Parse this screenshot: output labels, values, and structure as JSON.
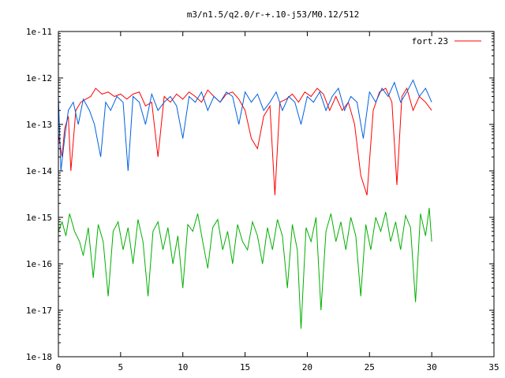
{
  "chart_data": {
    "type": "line",
    "title": "m3/n1.5/q2.0/r-+.10-j53/M0.12/512",
    "xlabel": "",
    "ylabel": "",
    "xlim": [
      0,
      35
    ],
    "ylim": [
      1e-18,
      1e-11
    ],
    "y_scale": "log",
    "grid": false,
    "legend_position": "top-right",
    "x_ticks": [
      0,
      5,
      10,
      15,
      20,
      25,
      30,
      35
    ],
    "x_tick_labels": [
      "0",
      "5",
      "10",
      "15",
      "20",
      "25",
      "30",
      "35"
    ],
    "y_ticks": [
      1e-18,
      1e-17,
      1e-16,
      1e-15,
      1e-14,
      1e-13,
      1e-12,
      1e-11
    ],
    "y_tick_labels": [
      "1e-18",
      "1e-17",
      "1e-16",
      "1e-15",
      "1e-14",
      "1e-13",
      "1e-12",
      "1e-11"
    ],
    "x_range": [
      0,
      30
    ],
    "series": [
      {
        "name": "fort.23",
        "color": "#ff0000",
        "values": [
          {
            "x": 0.0,
            "y": 6e-14
          },
          {
            "x": 0.3,
            "y": 2e-14
          },
          {
            "x": 0.5,
            "y": 8e-14
          },
          {
            "x": 0.8,
            "y": 1.5e-13
          },
          {
            "x": 1.0,
            "y": 1e-14
          },
          {
            "x": 1.4,
            "y": 2e-13
          },
          {
            "x": 1.8,
            "y": 3e-13
          },
          {
            "x": 2.2,
            "y": 3.5e-13
          },
          {
            "x": 2.6,
            "y": 4e-13
          },
          {
            "x": 3.0,
            "y": 6e-13
          },
          {
            "x": 3.5,
            "y": 4.5e-13
          },
          {
            "x": 4.0,
            "y": 5e-13
          },
          {
            "x": 4.5,
            "y": 4e-13
          },
          {
            "x": 5.0,
            "y": 4.5e-13
          },
          {
            "x": 5.5,
            "y": 3.5e-13
          },
          {
            "x": 6.0,
            "y": 4.5e-13
          },
          {
            "x": 6.5,
            "y": 5e-13
          },
          {
            "x": 7.0,
            "y": 2.5e-13
          },
          {
            "x": 7.5,
            "y": 3e-13
          },
          {
            "x": 8.0,
            "y": 2e-14
          },
          {
            "x": 8.5,
            "y": 4e-13
          },
          {
            "x": 9.0,
            "y": 3e-13
          },
          {
            "x": 9.5,
            "y": 4.5e-13
          },
          {
            "x": 10.0,
            "y": 3.5e-13
          },
          {
            "x": 10.5,
            "y": 5e-13
          },
          {
            "x": 11.0,
            "y": 4e-13
          },
          {
            "x": 11.5,
            "y": 3e-13
          },
          {
            "x": 12.0,
            "y": 5.5e-13
          },
          {
            "x": 12.5,
            "y": 4e-13
          },
          {
            "x": 13.0,
            "y": 3e-13
          },
          {
            "x": 13.5,
            "y": 4.5e-13
          },
          {
            "x": 14.0,
            "y": 5e-13
          },
          {
            "x": 14.5,
            "y": 3.5e-13
          },
          {
            "x": 15.0,
            "y": 2e-13
          },
          {
            "x": 15.5,
            "y": 5e-14
          },
          {
            "x": 16.0,
            "y": 3e-14
          },
          {
            "x": 16.5,
            "y": 1.5e-13
          },
          {
            "x": 17.0,
            "y": 2.5e-13
          },
          {
            "x": 17.4,
            "y": 3e-15
          },
          {
            "x": 17.8,
            "y": 3e-13
          },
          {
            "x": 18.3,
            "y": 3.5e-13
          },
          {
            "x": 18.8,
            "y": 4.5e-13
          },
          {
            "x": 19.3,
            "y": 3e-13
          },
          {
            "x": 19.8,
            "y": 5e-13
          },
          {
            "x": 20.3,
            "y": 4e-13
          },
          {
            "x": 20.8,
            "y": 6e-13
          },
          {
            "x": 21.3,
            "y": 4.5e-13
          },
          {
            "x": 21.8,
            "y": 2e-13
          },
          {
            "x": 22.3,
            "y": 4e-13
          },
          {
            "x": 22.8,
            "y": 2e-13
          },
          {
            "x": 23.3,
            "y": 3e-13
          },
          {
            "x": 23.8,
            "y": 1e-13
          },
          {
            "x": 24.3,
            "y": 8e-15
          },
          {
            "x": 24.8,
            "y": 3e-15
          },
          {
            "x": 25.3,
            "y": 2e-13
          },
          {
            "x": 25.8,
            "y": 5e-13
          },
          {
            "x": 26.3,
            "y": 6e-13
          },
          {
            "x": 26.8,
            "y": 3e-13
          },
          {
            "x": 27.2,
            "y": 5e-15
          },
          {
            "x": 27.6,
            "y": 4e-13
          },
          {
            "x": 28.0,
            "y": 6e-13
          },
          {
            "x": 28.5,
            "y": 2e-13
          },
          {
            "x": 29.0,
            "y": 4e-13
          },
          {
            "x": 29.5,
            "y": 3e-13
          },
          {
            "x": 30.0,
            "y": 2e-13
          }
        ]
      },
      {
        "name": "",
        "color": "#0060e0",
        "values": [
          {
            "x": 0.0,
            "y": 4e-13
          },
          {
            "x": 0.2,
            "y": 1e-14
          },
          {
            "x": 0.5,
            "y": 5e-14
          },
          {
            "x": 0.8,
            "y": 2e-13
          },
          {
            "x": 1.2,
            "y": 3e-13
          },
          {
            "x": 1.6,
            "y": 1e-13
          },
          {
            "x": 2.0,
            "y": 3.5e-13
          },
          {
            "x": 2.5,
            "y": 2e-13
          },
          {
            "x": 2.9,
            "y": 1e-13
          },
          {
            "x": 3.4,
            "y": 2e-14
          },
          {
            "x": 3.8,
            "y": 3e-13
          },
          {
            "x": 4.2,
            "y": 2e-13
          },
          {
            "x": 4.7,
            "y": 4e-13
          },
          {
            "x": 5.2,
            "y": 3e-13
          },
          {
            "x": 5.6,
            "y": 1e-14
          },
          {
            "x": 6.0,
            "y": 4e-13
          },
          {
            "x": 6.5,
            "y": 3e-13
          },
          {
            "x": 7.0,
            "y": 1e-13
          },
          {
            "x": 7.5,
            "y": 4.5e-13
          },
          {
            "x": 8.0,
            "y": 2e-13
          },
          {
            "x": 8.5,
            "y": 3e-13
          },
          {
            "x": 9.0,
            "y": 4e-13
          },
          {
            "x": 9.5,
            "y": 2.5e-13
          },
          {
            "x": 10.0,
            "y": 5e-14
          },
          {
            "x": 10.5,
            "y": 4e-13
          },
          {
            "x": 11.0,
            "y": 3e-13
          },
          {
            "x": 11.5,
            "y": 5e-13
          },
          {
            "x": 12.0,
            "y": 2e-13
          },
          {
            "x": 12.5,
            "y": 4e-13
          },
          {
            "x": 13.0,
            "y": 3e-13
          },
          {
            "x": 13.5,
            "y": 5e-13
          },
          {
            "x": 14.0,
            "y": 4e-13
          },
          {
            "x": 14.5,
            "y": 1e-13
          },
          {
            "x": 15.0,
            "y": 5e-13
          },
          {
            "x": 15.5,
            "y": 3e-13
          },
          {
            "x": 16.0,
            "y": 4.5e-13
          },
          {
            "x": 16.5,
            "y": 2e-13
          },
          {
            "x": 17.0,
            "y": 3e-13
          },
          {
            "x": 17.5,
            "y": 5e-13
          },
          {
            "x": 18.0,
            "y": 2e-13
          },
          {
            "x": 18.5,
            "y": 4e-13
          },
          {
            "x": 19.0,
            "y": 3e-13
          },
          {
            "x": 19.5,
            "y": 1e-13
          },
          {
            "x": 20.0,
            "y": 4e-13
          },
          {
            "x": 20.5,
            "y": 3e-13
          },
          {
            "x": 21.0,
            "y": 5e-13
          },
          {
            "x": 21.5,
            "y": 2e-13
          },
          {
            "x": 22.0,
            "y": 4e-13
          },
          {
            "x": 22.5,
            "y": 6e-13
          },
          {
            "x": 23.0,
            "y": 2e-13
          },
          {
            "x": 23.5,
            "y": 4e-13
          },
          {
            "x": 24.0,
            "y": 3e-13
          },
          {
            "x": 24.5,
            "y": 5e-14
          },
          {
            "x": 25.0,
            "y": 5e-13
          },
          {
            "x": 25.5,
            "y": 3e-13
          },
          {
            "x": 26.0,
            "y": 6e-13
          },
          {
            "x": 26.5,
            "y": 4e-13
          },
          {
            "x": 27.0,
            "y": 8e-13
          },
          {
            "x": 27.5,
            "y": 3e-13
          },
          {
            "x": 28.0,
            "y": 5e-13
          },
          {
            "x": 28.5,
            "y": 9e-13
          },
          {
            "x": 29.0,
            "y": 4e-13
          },
          {
            "x": 29.5,
            "y": 6e-13
          },
          {
            "x": 30.0,
            "y": 3e-13
          }
        ]
      },
      {
        "name": "",
        "color": "#00b000",
        "values": [
          {
            "x": 0.0,
            "y": 5e-16
          },
          {
            "x": 0.3,
            "y": 8e-16
          },
          {
            "x": 0.6,
            "y": 4e-16
          },
          {
            "x": 0.9,
            "y": 1.2e-15
          },
          {
            "x": 1.3,
            "y": 5e-16
          },
          {
            "x": 1.7,
            "y": 3e-16
          },
          {
            "x": 2.0,
            "y": 1.5e-16
          },
          {
            "x": 2.4,
            "y": 6e-16
          },
          {
            "x": 2.8,
            "y": 5e-17
          },
          {
            "x": 3.2,
            "y": 7e-16
          },
          {
            "x": 3.6,
            "y": 3e-16
          },
          {
            "x": 4.0,
            "y": 2e-17
          },
          {
            "x": 4.4,
            "y": 5e-16
          },
          {
            "x": 4.8,
            "y": 8e-16
          },
          {
            "x": 5.2,
            "y": 2e-16
          },
          {
            "x": 5.6,
            "y": 6e-16
          },
          {
            "x": 6.0,
            "y": 1e-16
          },
          {
            "x": 6.4,
            "y": 9e-16
          },
          {
            "x": 6.8,
            "y": 3e-16
          },
          {
            "x": 7.2,
            "y": 2e-17
          },
          {
            "x": 7.6,
            "y": 5e-16
          },
          {
            "x": 8.0,
            "y": 8e-16
          },
          {
            "x": 8.4,
            "y": 2e-16
          },
          {
            "x": 8.8,
            "y": 6e-16
          },
          {
            "x": 9.2,
            "y": 1e-16
          },
          {
            "x": 9.6,
            "y": 4e-16
          },
          {
            "x": 10.0,
            "y": 3e-17
          },
          {
            "x": 10.4,
            "y": 7e-16
          },
          {
            "x": 10.8,
            "y": 5e-16
          },
          {
            "x": 11.2,
            "y": 1.2e-15
          },
          {
            "x": 11.6,
            "y": 3e-16
          },
          {
            "x": 12.0,
            "y": 8e-17
          },
          {
            "x": 12.4,
            "y": 6e-16
          },
          {
            "x": 12.8,
            "y": 9e-16
          },
          {
            "x": 13.2,
            "y": 2e-16
          },
          {
            "x": 13.6,
            "y": 5e-16
          },
          {
            "x": 14.0,
            "y": 1e-16
          },
          {
            "x": 14.4,
            "y": 7e-16
          },
          {
            "x": 14.8,
            "y": 3e-16
          },
          {
            "x": 15.2,
            "y": 2e-16
          },
          {
            "x": 15.6,
            "y": 8e-16
          },
          {
            "x": 16.0,
            "y": 4e-16
          },
          {
            "x": 16.4,
            "y": 1e-16
          },
          {
            "x": 16.8,
            "y": 6e-16
          },
          {
            "x": 17.2,
            "y": 2e-16
          },
          {
            "x": 17.6,
            "y": 9e-16
          },
          {
            "x": 18.0,
            "y": 4e-16
          },
          {
            "x": 18.4,
            "y": 3e-17
          },
          {
            "x": 18.8,
            "y": 7e-16
          },
          {
            "x": 19.2,
            "y": 2e-16
          },
          {
            "x": 19.5,
            "y": 4e-18
          },
          {
            "x": 19.9,
            "y": 6e-16
          },
          {
            "x": 20.3,
            "y": 3e-16
          },
          {
            "x": 20.7,
            "y": 1e-15
          },
          {
            "x": 21.1,
            "y": 1e-17
          },
          {
            "x": 21.5,
            "y": 5e-16
          },
          {
            "x": 21.9,
            "y": 1.2e-15
          },
          {
            "x": 22.3,
            "y": 3e-16
          },
          {
            "x": 22.7,
            "y": 8e-16
          },
          {
            "x": 23.1,
            "y": 2e-16
          },
          {
            "x": 23.5,
            "y": 1e-15
          },
          {
            "x": 23.9,
            "y": 4e-16
          },
          {
            "x": 24.3,
            "y": 2e-17
          },
          {
            "x": 24.7,
            "y": 7e-16
          },
          {
            "x": 25.1,
            "y": 2e-16
          },
          {
            "x": 25.5,
            "y": 1e-15
          },
          {
            "x": 25.9,
            "y": 5e-16
          },
          {
            "x": 26.3,
            "y": 1.3e-15
          },
          {
            "x": 26.7,
            "y": 3e-16
          },
          {
            "x": 27.1,
            "y": 8e-16
          },
          {
            "x": 27.5,
            "y": 2e-16
          },
          {
            "x": 27.9,
            "y": 1.1e-15
          },
          {
            "x": 28.3,
            "y": 6e-16
          },
          {
            "x": 28.7,
            "y": 1.5e-17
          },
          {
            "x": 29.1,
            "y": 1.2e-15
          },
          {
            "x": 29.5,
            "y": 4e-16
          },
          {
            "x": 29.8,
            "y": 1.6e-15
          },
          {
            "x": 30.0,
            "y": 3e-16
          }
        ]
      }
    ]
  }
}
